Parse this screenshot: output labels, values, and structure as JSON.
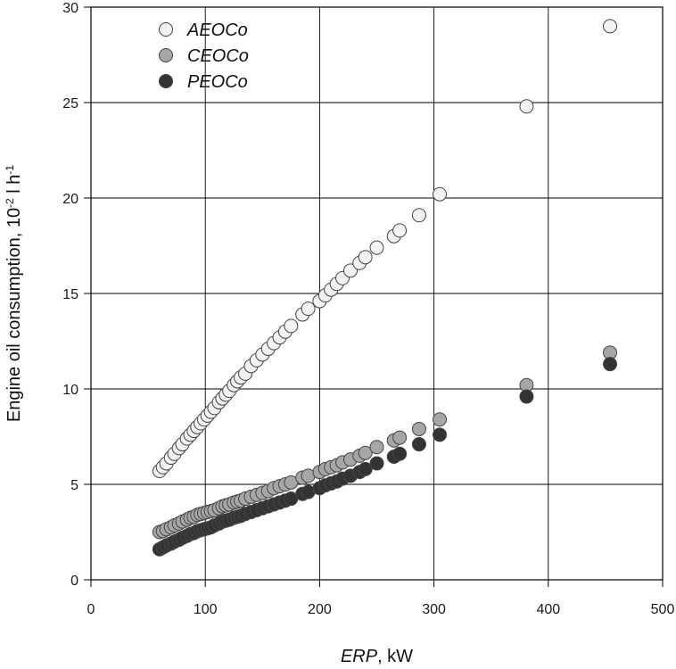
{
  "chart_data": {
    "type": "scatter",
    "title": "",
    "xlabel_italic": "ERP",
    "xlabel_rest": ", kW",
    "ylabel_base": "Engine oil consumption, 10",
    "ylabel_exp1": "-2",
    "ylabel_mid": " l h",
    "ylabel_exp2": "-1",
    "xlim": [
      0,
      500
    ],
    "ylim": [
      0,
      30
    ],
    "xticks": [
      0,
      100,
      200,
      300,
      400,
      500
    ],
    "yticks": [
      0,
      5,
      10,
      15,
      20,
      25,
      30
    ],
    "grid": true,
    "legend_position": "top-left",
    "series": [
      {
        "name": "AEOCo",
        "fill": "#f2f2f2",
        "x": [
          60,
          63,
          66,
          70,
          73,
          77,
          80,
          84,
          87,
          90,
          93,
          96,
          99,
          102,
          105,
          108,
          112,
          115,
          118,
          121,
          125,
          128,
          131,
          135,
          140,
          145,
          150,
          155,
          160,
          165,
          170,
          175,
          185,
          190,
          200,
          205,
          210,
          215,
          220,
          227,
          235,
          240,
          250,
          265,
          270,
          287,
          305,
          381,
          454
        ],
        "y": [
          5.7,
          5.9,
          6.1,
          6.4,
          6.6,
          6.9,
          7.1,
          7.4,
          7.6,
          7.8,
          8.0,
          8.2,
          8.4,
          8.6,
          8.8,
          9.0,
          9.3,
          9.5,
          9.7,
          9.9,
          10.2,
          10.4,
          10.6,
          10.8,
          11.2,
          11.5,
          11.8,
          12.1,
          12.4,
          12.7,
          13.0,
          13.3,
          13.9,
          14.2,
          14.6,
          14.9,
          15.2,
          15.5,
          15.8,
          16.2,
          16.6,
          16.9,
          17.4,
          18.0,
          18.3,
          19.1,
          20.2,
          24.8,
          29.0
        ]
      },
      {
        "name": "CEOCo",
        "fill": "#a6a6a6",
        "x": [
          60,
          63,
          66,
          70,
          73,
          77,
          80,
          84,
          87,
          90,
          93,
          96,
          99,
          102,
          105,
          108,
          112,
          115,
          118,
          121,
          125,
          128,
          131,
          135,
          140,
          145,
          150,
          155,
          160,
          165,
          170,
          175,
          185,
          190,
          200,
          205,
          210,
          215,
          220,
          227,
          235,
          240,
          250,
          265,
          270,
          287,
          305,
          381,
          454
        ],
        "y": [
          2.5,
          2.55,
          2.65,
          2.75,
          2.85,
          2.95,
          3.05,
          3.15,
          3.25,
          3.3,
          3.4,
          3.45,
          3.5,
          3.55,
          3.6,
          3.65,
          3.75,
          3.85,
          3.9,
          3.95,
          4.05,
          4.1,
          4.15,
          4.25,
          4.35,
          4.45,
          4.55,
          4.65,
          4.8,
          4.9,
          5.0,
          5.1,
          5.35,
          5.45,
          5.65,
          5.8,
          5.9,
          6.0,
          6.15,
          6.3,
          6.5,
          6.65,
          6.95,
          7.3,
          7.45,
          7.9,
          8.4,
          10.2,
          11.9
        ]
      },
      {
        "name": "PEOCo",
        "fill": "#333333",
        "x": [
          60,
          63,
          66,
          70,
          73,
          77,
          80,
          84,
          87,
          90,
          93,
          96,
          99,
          102,
          105,
          108,
          112,
          115,
          118,
          121,
          125,
          128,
          131,
          135,
          140,
          145,
          150,
          155,
          160,
          165,
          170,
          175,
          185,
          190,
          200,
          205,
          210,
          215,
          220,
          227,
          235,
          240,
          250,
          265,
          270,
          287,
          305,
          381,
          454
        ],
        "y": [
          1.6,
          1.7,
          1.8,
          1.9,
          2.0,
          2.1,
          2.2,
          2.3,
          2.4,
          2.45,
          2.55,
          2.6,
          2.65,
          2.7,
          2.75,
          2.85,
          2.95,
          3.05,
          3.1,
          3.15,
          3.25,
          3.3,
          3.35,
          3.45,
          3.55,
          3.65,
          3.75,
          3.85,
          3.95,
          4.05,
          4.15,
          4.25,
          4.5,
          4.6,
          4.8,
          4.95,
          5.05,
          5.15,
          5.3,
          5.45,
          5.65,
          5.8,
          6.1,
          6.45,
          6.6,
          7.1,
          7.6,
          9.6,
          11.3
        ]
      }
    ]
  }
}
